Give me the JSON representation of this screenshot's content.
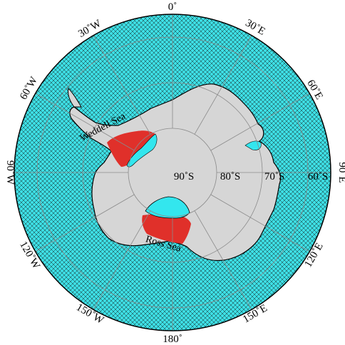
{
  "colors": {
    "ocean": "#3ee0e6",
    "track_lines": "#111111",
    "land": "#d6d6d6",
    "coast": "#000000",
    "ice_shelf": "#33e6ee",
    "highlight": "#e0302a",
    "graticule": "#8a8a8a"
  },
  "longitude_labels": {
    "lon_0": "0˚",
    "lon_30e": "30˚E",
    "lon_60e": "60˚E",
    "lon_90e": "90˚E",
    "lon_120e": "120˚E",
    "lon_150e": "150˚E",
    "lon_180": "180˚",
    "lon_150w": "150˚W",
    "lon_120w": "120˚W",
    "lon_90w": "90˚W",
    "lon_60w": "60˚W",
    "lon_30w": "30˚W"
  },
  "latitude_labels": {
    "lat_90s": "90˚S",
    "lat_80s": "80˚S",
    "lat_70s": "70˚S",
    "lat_60s": "60˚S"
  },
  "region_labels": {
    "weddell_sea": "Weddell Sea",
    "ross_sea": "Ross Sea"
  }
}
